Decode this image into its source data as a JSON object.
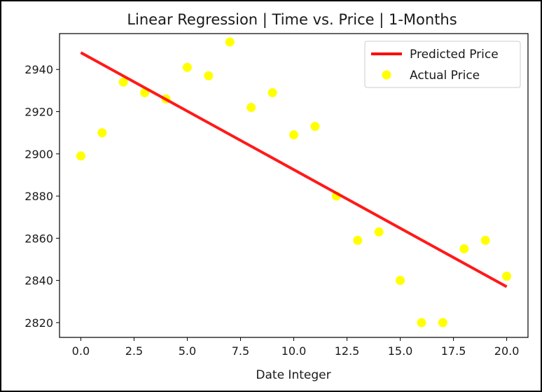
{
  "chart_data": {
    "type": "scatter",
    "title": "Linear Regression | Time vs. Price | 1-Months",
    "xlabel": "Date Integer",
    "ylabel": "",
    "xlim": [
      -1.0,
      21.0
    ],
    "ylim": [
      2813.0,
      2957.0
    ],
    "xticks": [
      0.0,
      2.5,
      5.0,
      7.5,
      10.0,
      12.5,
      15.0,
      17.5,
      20.0
    ],
    "xtick_labels": [
      "0.0",
      "2.5",
      "5.0",
      "7.5",
      "10.0",
      "12.5",
      "15.0",
      "17.5",
      "20.0"
    ],
    "yticks": [
      2820,
      2840,
      2860,
      2880,
      2900,
      2920,
      2940
    ],
    "ytick_labels": [
      "2820",
      "2840",
      "2860",
      "2880",
      "2900",
      "2920",
      "2940"
    ],
    "grid": false,
    "legend_position": "top-right",
    "series": [
      {
        "name": "Predicted Price",
        "kind": "line",
        "color": "#ff0000",
        "x": [
          0,
          20
        ],
        "y": [
          2948,
          2837
        ]
      },
      {
        "name": "Actual Price",
        "kind": "scatter",
        "color": "#ffff00",
        "x": [
          0,
          1,
          2,
          3,
          4,
          5,
          6,
          7,
          8,
          9,
          10,
          11,
          12,
          13,
          14,
          15,
          16,
          17,
          18,
          19,
          20
        ],
        "y": [
          2899,
          2910,
          2934,
          2929,
          2926,
          2941,
          2937,
          2953,
          2922,
          2929,
          2909,
          2913,
          2880,
          2859,
          2863,
          2840,
          2820,
          2820,
          2855,
          2859,
          2842
        ]
      }
    ]
  }
}
